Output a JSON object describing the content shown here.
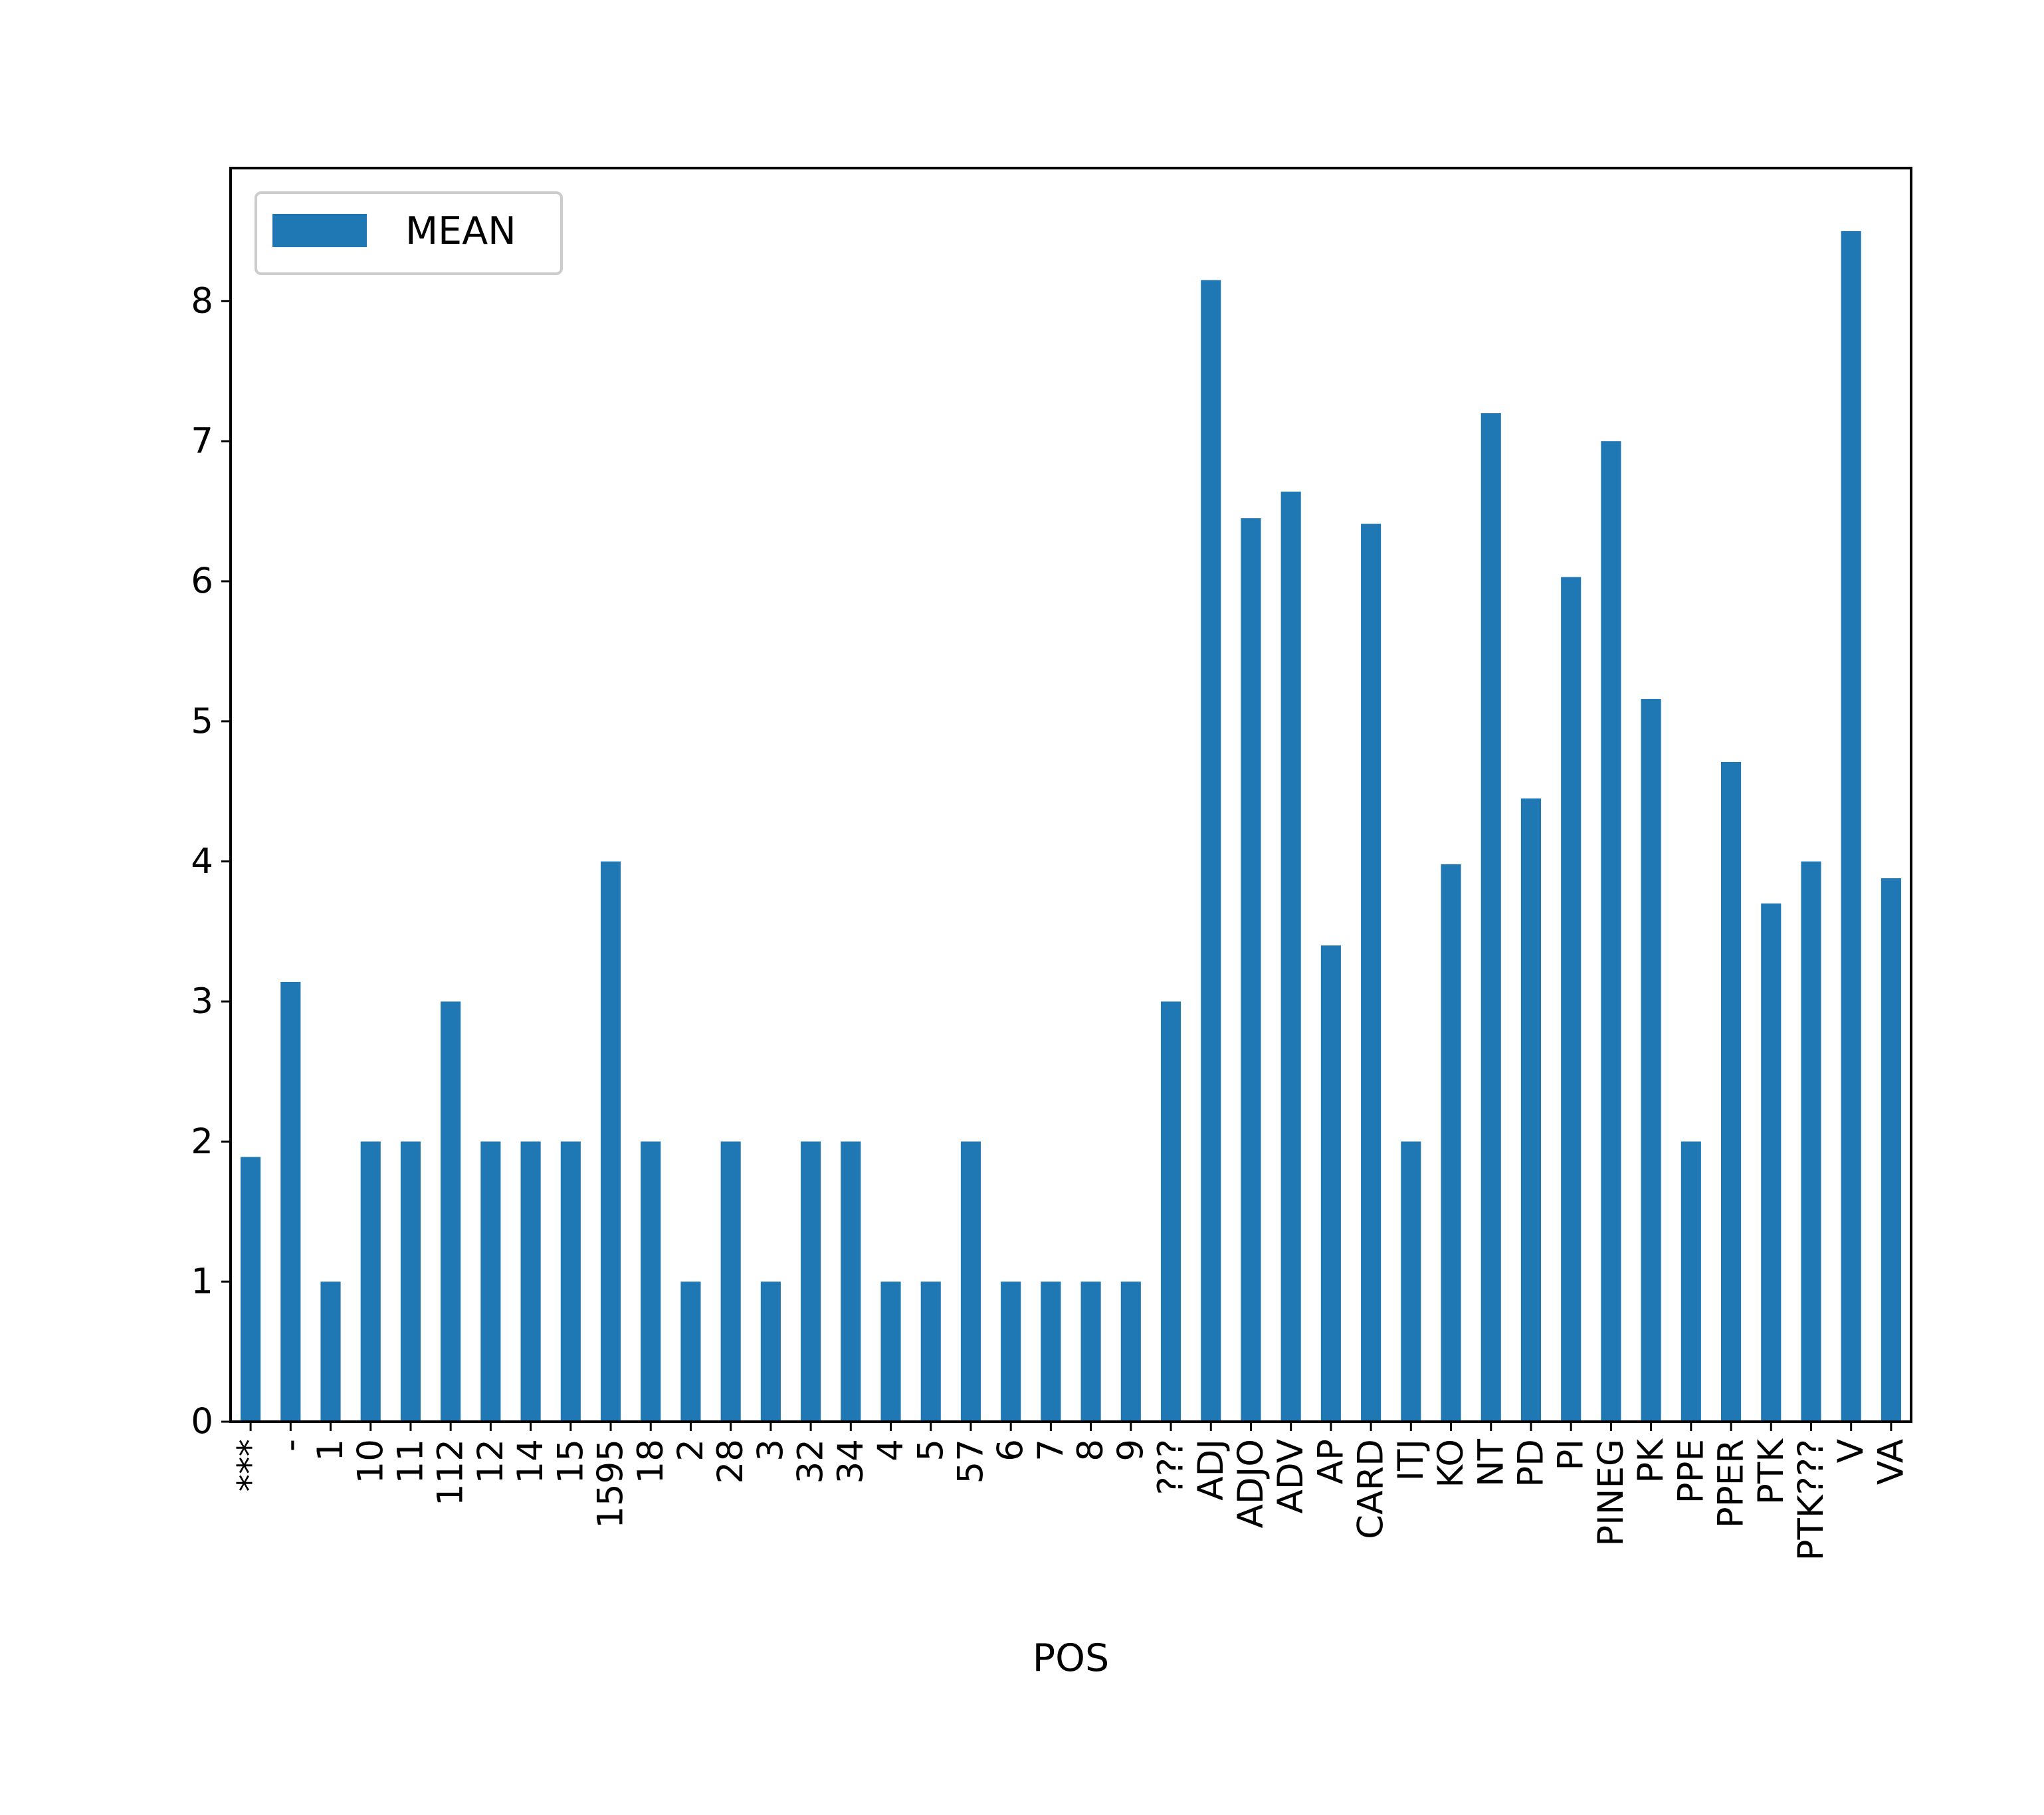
{
  "chart_data": {
    "type": "bar",
    "xlabel": "POS",
    "ylabel": "",
    "ylim": [
      0,
      8.95
    ],
    "yticks": [
      0,
      1,
      2,
      3,
      4,
      5,
      6,
      7,
      8
    ],
    "grid": false,
    "legend_position": "top-left",
    "categories": [
      "***",
      "-",
      "1",
      "10",
      "11",
      "112",
      "12",
      "14",
      "15",
      "1595",
      "18",
      "2",
      "28",
      "3",
      "32",
      "34",
      "4",
      "5",
      "57",
      "6",
      "7",
      "8",
      "9",
      "???",
      "ADJ",
      "ADJO",
      "ADV",
      "AP",
      "CARD",
      "ITJ",
      "KO",
      "NT",
      "PD",
      "PI",
      "PINEG",
      "PK",
      "PPE",
      "PPER",
      "PTK",
      "PTK???",
      "V",
      "VA"
    ],
    "series": [
      {
        "name": "MEAN",
        "color": "#1f77b4",
        "values": [
          1.89,
          3.14,
          1,
          2,
          2,
          3,
          2,
          2,
          2,
          4,
          2,
          1,
          2,
          1,
          2,
          2,
          1,
          1,
          2,
          1,
          1,
          1,
          1,
          3,
          8.15,
          6.45,
          6.64,
          3.4,
          6.41,
          2,
          3.98,
          7.2,
          4.45,
          6.03,
          7.0,
          5.16,
          2,
          4.71,
          3.7,
          4.0,
          8.5,
          3.88
        ]
      }
    ]
  }
}
